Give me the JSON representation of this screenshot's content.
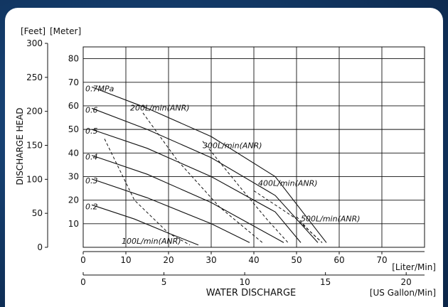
{
  "chart_data": {
    "type": "line",
    "xlabel": "WATER DISCHARGE",
    "ylabel": "DISCHARGE HEAD",
    "x_unit_primary": "[Liter/Min]",
    "x_unit_secondary": "[US Gallon/Min]",
    "y_unit_feet": "[Feet]",
    "y_unit_meter": "[Meter]",
    "x_lim": [
      0,
      80
    ],
    "y_lim": [
      0,
      85
    ],
    "grid": true,
    "x_ticks_liter": [
      "0",
      "10",
      "20",
      "30",
      "40",
      "50",
      "60",
      "70"
    ],
    "x_ticks_gallon": [
      "0",
      "5",
      "10",
      "15",
      "20"
    ],
    "y_ticks_meter": [
      "10",
      "20",
      "30",
      "40",
      "50",
      "60",
      "70",
      "80"
    ],
    "y_ticks_feet": [
      "0",
      "50",
      "100",
      "150",
      "200",
      "250",
      "300"
    ],
    "pressure_curves": [
      {
        "name": "0.7MPa",
        "points": [
          [
            2,
            68
          ],
          [
            15,
            59
          ],
          [
            30,
            47
          ],
          [
            45,
            30
          ],
          [
            57,
            2
          ]
        ]
      },
      {
        "name": "0.6",
        "points": [
          [
            2,
            59
          ],
          [
            15,
            50
          ],
          [
            30,
            38
          ],
          [
            45,
            22
          ],
          [
            55,
            2
          ]
        ]
      },
      {
        "name": "0.5",
        "points": [
          [
            2,
            50
          ],
          [
            15,
            42
          ],
          [
            30,
            30
          ],
          [
            45,
            15
          ],
          [
            51,
            2
          ]
        ]
      },
      {
        "name": "0.4",
        "points": [
          [
            2,
            39
          ],
          [
            15,
            31
          ],
          [
            30,
            19
          ],
          [
            43,
            6
          ],
          [
            47,
            2
          ]
        ]
      },
      {
        "name": "0.3",
        "points": [
          [
            2,
            29
          ],
          [
            15,
            21
          ],
          [
            30,
            10
          ],
          [
            39,
            2
          ]
        ]
      },
      {
        "name": "0.2",
        "points": [
          [
            2,
            18
          ],
          [
            12,
            12
          ],
          [
            20,
            6
          ],
          [
            27,
            1
          ]
        ]
      }
    ],
    "air_consumption_curves": [
      {
        "name": "100L/min(ANR)",
        "points": [
          [
            5,
            46
          ],
          [
            12,
            20
          ],
          [
            20,
            6
          ],
          [
            25,
            1
          ]
        ]
      },
      {
        "name": "200L/min(ANR)",
        "points": [
          [
            14,
            57
          ],
          [
            22,
            37
          ],
          [
            32,
            17
          ],
          [
            42,
            2
          ]
        ]
      },
      {
        "name": "300L/min(ANR)",
        "points": [
          [
            28,
            45
          ],
          [
            37,
            25
          ],
          [
            43,
            12
          ],
          [
            48,
            2
          ]
        ]
      },
      {
        "name": "400L/min(ANR)",
        "points": [
          [
            40,
            24
          ],
          [
            50,
            12
          ],
          [
            56,
            2
          ]
        ]
      },
      {
        "name": "500L/min(ANR)",
        "points": [
          [
            50,
            13
          ],
          [
            53,
            7
          ],
          [
            56,
            2
          ]
        ]
      }
    ]
  }
}
